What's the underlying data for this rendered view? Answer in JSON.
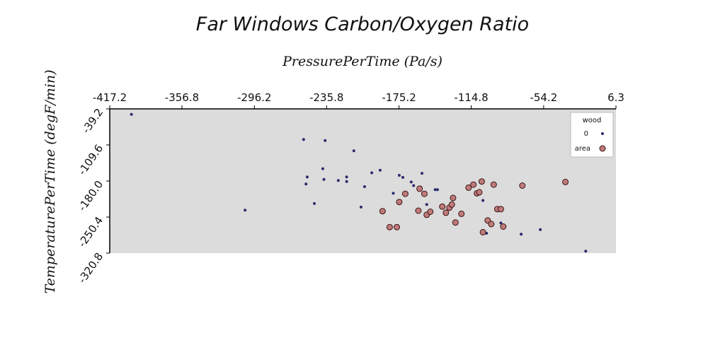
{
  "chart_data": {
    "type": "scatter",
    "title": "Far Windows Carbon/Oxygen Ratio",
    "xlabel": "PressurePerTime (Pa/s)",
    "ylabel": "TemperaturePerTime (degF/min)",
    "x_axis_position": "top",
    "xlim": [
      -417.2,
      6.3
    ],
    "ylim": [
      -320.8,
      -39.2
    ],
    "x_ticks": [
      "-417.2",
      "-356.8",
      "-296.2",
      "-235.8",
      "-175.2",
      "-114.8",
      "-54.2",
      "6.3"
    ],
    "y_ticks": [
      "-39.2",
      "-109.6",
      "-180.0",
      "-250.4",
      "-320.8"
    ],
    "grid": false,
    "background": "#dcdcdc",
    "legend": {
      "title": "wood",
      "placement": "top-right"
    },
    "series": [
      {
        "name": "0",
        "color": "#2a2a6e",
        "marker": "small-dot",
        "points": [
          [
            -399,
            -50
          ],
          [
            -304,
            -237
          ],
          [
            -255,
            -99
          ],
          [
            -252,
            -172
          ],
          [
            -253,
            -186
          ],
          [
            -246,
            -224
          ],
          [
            -239,
            -156
          ],
          [
            -238,
            -177
          ],
          [
            -237,
            -101
          ],
          [
            -226,
            -179
          ],
          [
            -219,
            -172
          ],
          [
            -219,
            -181
          ],
          [
            -213,
            -121
          ],
          [
            -207,
            -231
          ],
          [
            -204,
            -191
          ],
          [
            -198,
            -164
          ],
          [
            -191,
            -159
          ],
          [
            -180,
            -204
          ],
          [
            -175,
            -169
          ],
          [
            -172,
            -173
          ],
          [
            -165,
            -182
          ],
          [
            -163,
            -189
          ],
          [
            -157,
            -192
          ],
          [
            -156,
            -165
          ],
          [
            -152,
            -226
          ],
          [
            -145,
            -197
          ],
          [
            -143,
            -197
          ],
          [
            -105,
            -218
          ],
          [
            -102,
            -282
          ],
          [
            -90,
            -262
          ],
          [
            -73,
            -284
          ],
          [
            -57,
            -275
          ],
          [
            -19,
            -317
          ]
        ]
      },
      {
        "name": "area",
        "color": "#c07a7a",
        "marker": "circle",
        "points": [
          [
            -189,
            -239
          ],
          [
            -183,
            -270
          ],
          [
            -177,
            -270
          ],
          [
            -175,
            -221
          ],
          [
            -170,
            -205
          ],
          [
            -159,
            -238
          ],
          [
            -158,
            -195
          ],
          [
            -154,
            -205
          ],
          [
            -152,
            -246
          ],
          [
            -149,
            -240
          ],
          [
            -139,
            -230
          ],
          [
            -136,
            -242
          ],
          [
            -133,
            -232
          ],
          [
            -131,
            -226
          ],
          [
            -130,
            -213
          ],
          [
            -128,
            -261
          ],
          [
            -123,
            -244
          ],
          [
            -117,
            -193
          ],
          [
            -113,
            -187
          ],
          [
            -110,
            -204
          ],
          [
            -108,
            -202
          ],
          [
            -106,
            -181
          ],
          [
            -105,
            -280
          ],
          [
            -101,
            -257
          ],
          [
            -98,
            -264
          ],
          [
            -96,
            -187
          ],
          [
            -93,
            -235
          ],
          [
            -90,
            -235
          ],
          [
            -88,
            -269
          ],
          [
            -72,
            -189
          ],
          [
            -36,
            -182
          ]
        ]
      }
    ]
  }
}
